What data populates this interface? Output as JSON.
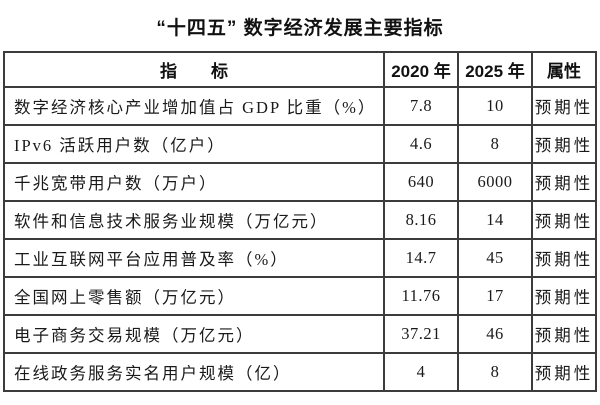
{
  "title": "“十四五” 数字经济发展主要指标",
  "table": {
    "headers": {
      "indicator": "指　　标",
      "y2020": "2020 年",
      "y2025": "2025 年",
      "attribute": "属性"
    },
    "rows": [
      {
        "indicator": "数字经济核心产业增加值占 GDP 比重（%）",
        "v2020": "7.8",
        "v2025": "10",
        "attribute": "预期性"
      },
      {
        "indicator": "IPv6 活跃用户数（亿户）",
        "v2020": "4.6",
        "v2025": "8",
        "attribute": "预期性"
      },
      {
        "indicator": "千兆宽带用户数（万户）",
        "v2020": "640",
        "v2025": "6000",
        "attribute": "预期性"
      },
      {
        "indicator": "软件和信息技术服务业规模（万亿元）",
        "v2020": "8.16",
        "v2025": "14",
        "attribute": "预期性"
      },
      {
        "indicator": "工业互联网平台应用普及率（%）",
        "v2020": "14.7",
        "v2025": "45",
        "attribute": "预期性"
      },
      {
        "indicator": "全国网上零售额（万亿元）",
        "v2020": "11.76",
        "v2025": "17",
        "attribute": "预期性"
      },
      {
        "indicator": "电子商务交易规模（万亿元）",
        "v2020": "37.21",
        "v2025": "46",
        "attribute": "预期性"
      },
      {
        "indicator": "在线政务服务实名用户规模（亿）",
        "v2020": "4",
        "v2025": "8",
        "attribute": "预期性"
      }
    ]
  }
}
